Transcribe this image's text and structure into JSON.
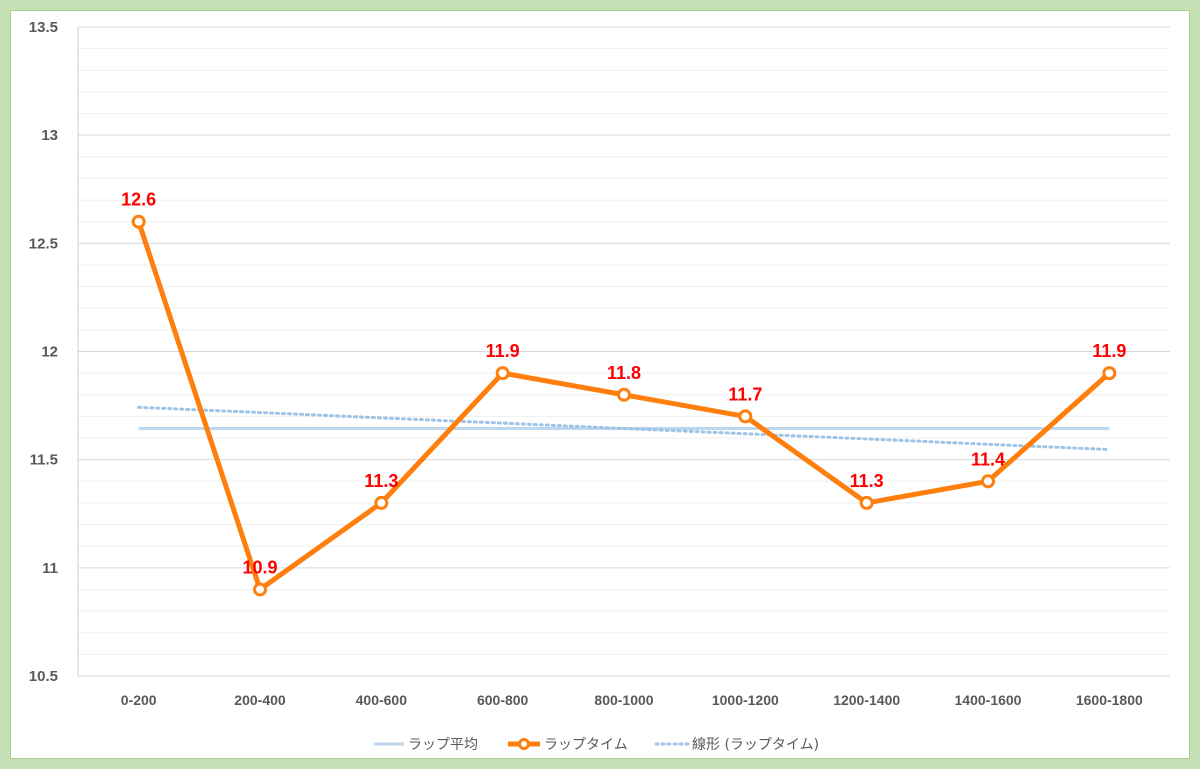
{
  "chart_data": {
    "type": "line",
    "categories": [
      "0-200",
      "200-400",
      "400-600",
      "600-800",
      "800-1000",
      "1000-1200",
      "1200-1400",
      "1400-1600",
      "1600-1800"
    ],
    "series": [
      {
        "name": "ラップタイム",
        "values": [
          12.6,
          10.9,
          11.3,
          11.9,
          11.8,
          11.7,
          11.3,
          11.4,
          11.9
        ],
        "color": "#ff7f0e",
        "data_labels": [
          "12.6",
          "10.9",
          "11.3",
          "11.9",
          "11.8",
          "11.7",
          "11.3",
          "11.4",
          "11.9"
        ]
      },
      {
        "name": "ラップ平均",
        "values": [
          11.644,
          11.644,
          11.644,
          11.644,
          11.644,
          11.644,
          11.644,
          11.644,
          11.644
        ],
        "color": "#bdd7ee"
      },
      {
        "name": "線形 (ラップタイム)",
        "values": [
          11.742,
          11.718,
          11.693,
          11.669,
          11.644,
          11.62,
          11.596,
          11.571,
          11.547
        ],
        "color": "#9dc3e6",
        "style": "dotted"
      }
    ],
    "ylim": [
      10.5,
      13.5
    ],
    "ytick_labels": [
      "10.5",
      "11",
      "11.5",
      "12",
      "12.5",
      "13",
      "13.5"
    ],
    "grid": true,
    "legend_position": "bottom",
    "data_label_color": "#ff0000",
    "background": "#c5e0b4",
    "title": "",
    "xlabel": "",
    "ylabel": ""
  }
}
